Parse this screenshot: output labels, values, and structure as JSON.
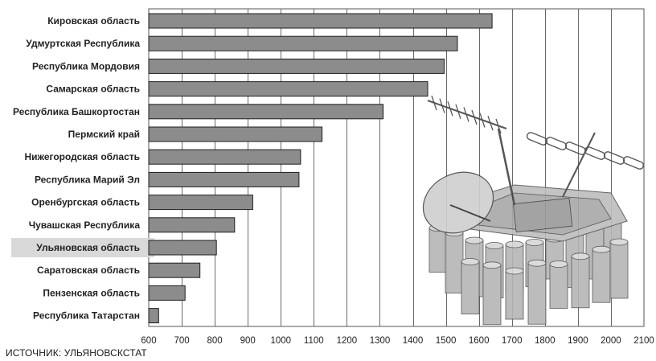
{
  "chart_data": {
    "type": "bar",
    "orientation": "horizontal",
    "categories": [
      "Кировская область",
      "Удмуртская Республика",
      "Республика Мордовия",
      "Самарская область",
      "Республика Башкортостан",
      "Пермский край",
      "Нижегородская область",
      "Республика Марий Эл",
      "Оренбургская область",
      "Чувашская Республика",
      "Ульяновская область",
      "Саратовская область",
      "Пензенская область",
      "Республика Татарстан"
    ],
    "values": [
      1640,
      1535,
      1495,
      1445,
      1310,
      1125,
      1060,
      1055,
      915,
      860,
      805,
      755,
      710,
      630
    ],
    "highlight_category": "Ульяновская область",
    "xlim": [
      600,
      2100
    ],
    "xticks": [
      600,
      700,
      800,
      900,
      1000,
      1100,
      1200,
      1300,
      1400,
      1500,
      1600,
      1700,
      1800,
      1900,
      2000,
      2100
    ],
    "grid": true,
    "bar_color": "#8c8c8c",
    "bar_edge_color": "#1e1e1e",
    "highlight_color": "#d9d9d9"
  },
  "source_text": "ИСТОЧНИК: УЛЬЯНОВСКСТАТ"
}
